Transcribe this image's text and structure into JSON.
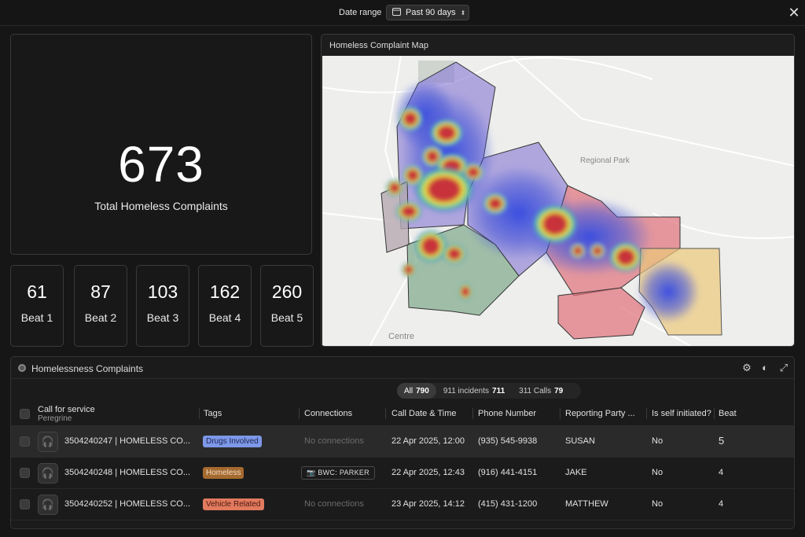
{
  "topbar": {
    "date_range_label": "Date range",
    "date_range_value": "Past 90 days",
    "calendar_icon": "calendar-icon",
    "close_icon": "close-icon"
  },
  "summary": {
    "total": "673",
    "total_label": "Total Homeless Complaints",
    "beats": [
      {
        "count": "61",
        "label": "Beat 1"
      },
      {
        "count": "87",
        "label": "Beat 2"
      },
      {
        "count": "103",
        "label": "Beat 3"
      },
      {
        "count": "162",
        "label": "Beat 4"
      },
      {
        "count": "260",
        "label": "Beat 5"
      }
    ]
  },
  "map": {
    "title": "Homeless Complaint Map",
    "place_labels": [
      "Regional Park",
      "Centre"
    ],
    "beat_colors": {
      "beat_a": "#8e7fd6",
      "beat_b": "#e0707a",
      "beat_c": "#7fa98a",
      "beat_d": "#ecc97c",
      "beat_e": "#b7a9b2"
    }
  },
  "table": {
    "title": "Homelessness Complaints",
    "segments": [
      {
        "label": "All",
        "count": "790"
      },
      {
        "label": "911 incidents",
        "count": "711"
      },
      {
        "label": "311 Calls",
        "count": "79"
      }
    ],
    "columns": {
      "call": "Call for service",
      "call_sub": "Peregrine",
      "tags": "Tags",
      "connections": "Connections",
      "date": "Call Date & Time",
      "phone": "Phone Number",
      "party": "Reporting Party ...",
      "self": "Is self initiated?",
      "beat": "Beat"
    },
    "rows": [
      {
        "call": "3504240247 | HOMELESS CO...",
        "tag": "Drugs Involved",
        "tag_bg": "#7d98e8",
        "tag_fg": "#1c2550",
        "connection": "No connections",
        "date": "22 Apr 2025, 12:00",
        "phone": "(935) 545-9938",
        "party": "SUSAN",
        "self": "No",
        "beat": "5"
      },
      {
        "call": "3504240248 | HOMELESS CO...",
        "tag": "Homeless",
        "tag_bg": "#a56a30",
        "tag_fg": "#f2dcc3",
        "connection": "BWC: PARKER",
        "date": "22 Apr 2025, 12:43",
        "phone": "(916) 441-4151",
        "party": "JAKE",
        "self": "No",
        "beat": "4"
      },
      {
        "call": "3504240252 | HOMELESS CO...",
        "tag": "Vehicle Related",
        "tag_bg": "#e27a5e",
        "tag_fg": "#4a1a10",
        "connection": "No connections",
        "date": "23 Apr 2025, 14:12",
        "phone": "(415) 431-1200",
        "party": "MATTHEW",
        "self": "No",
        "beat": "4"
      }
    ]
  }
}
